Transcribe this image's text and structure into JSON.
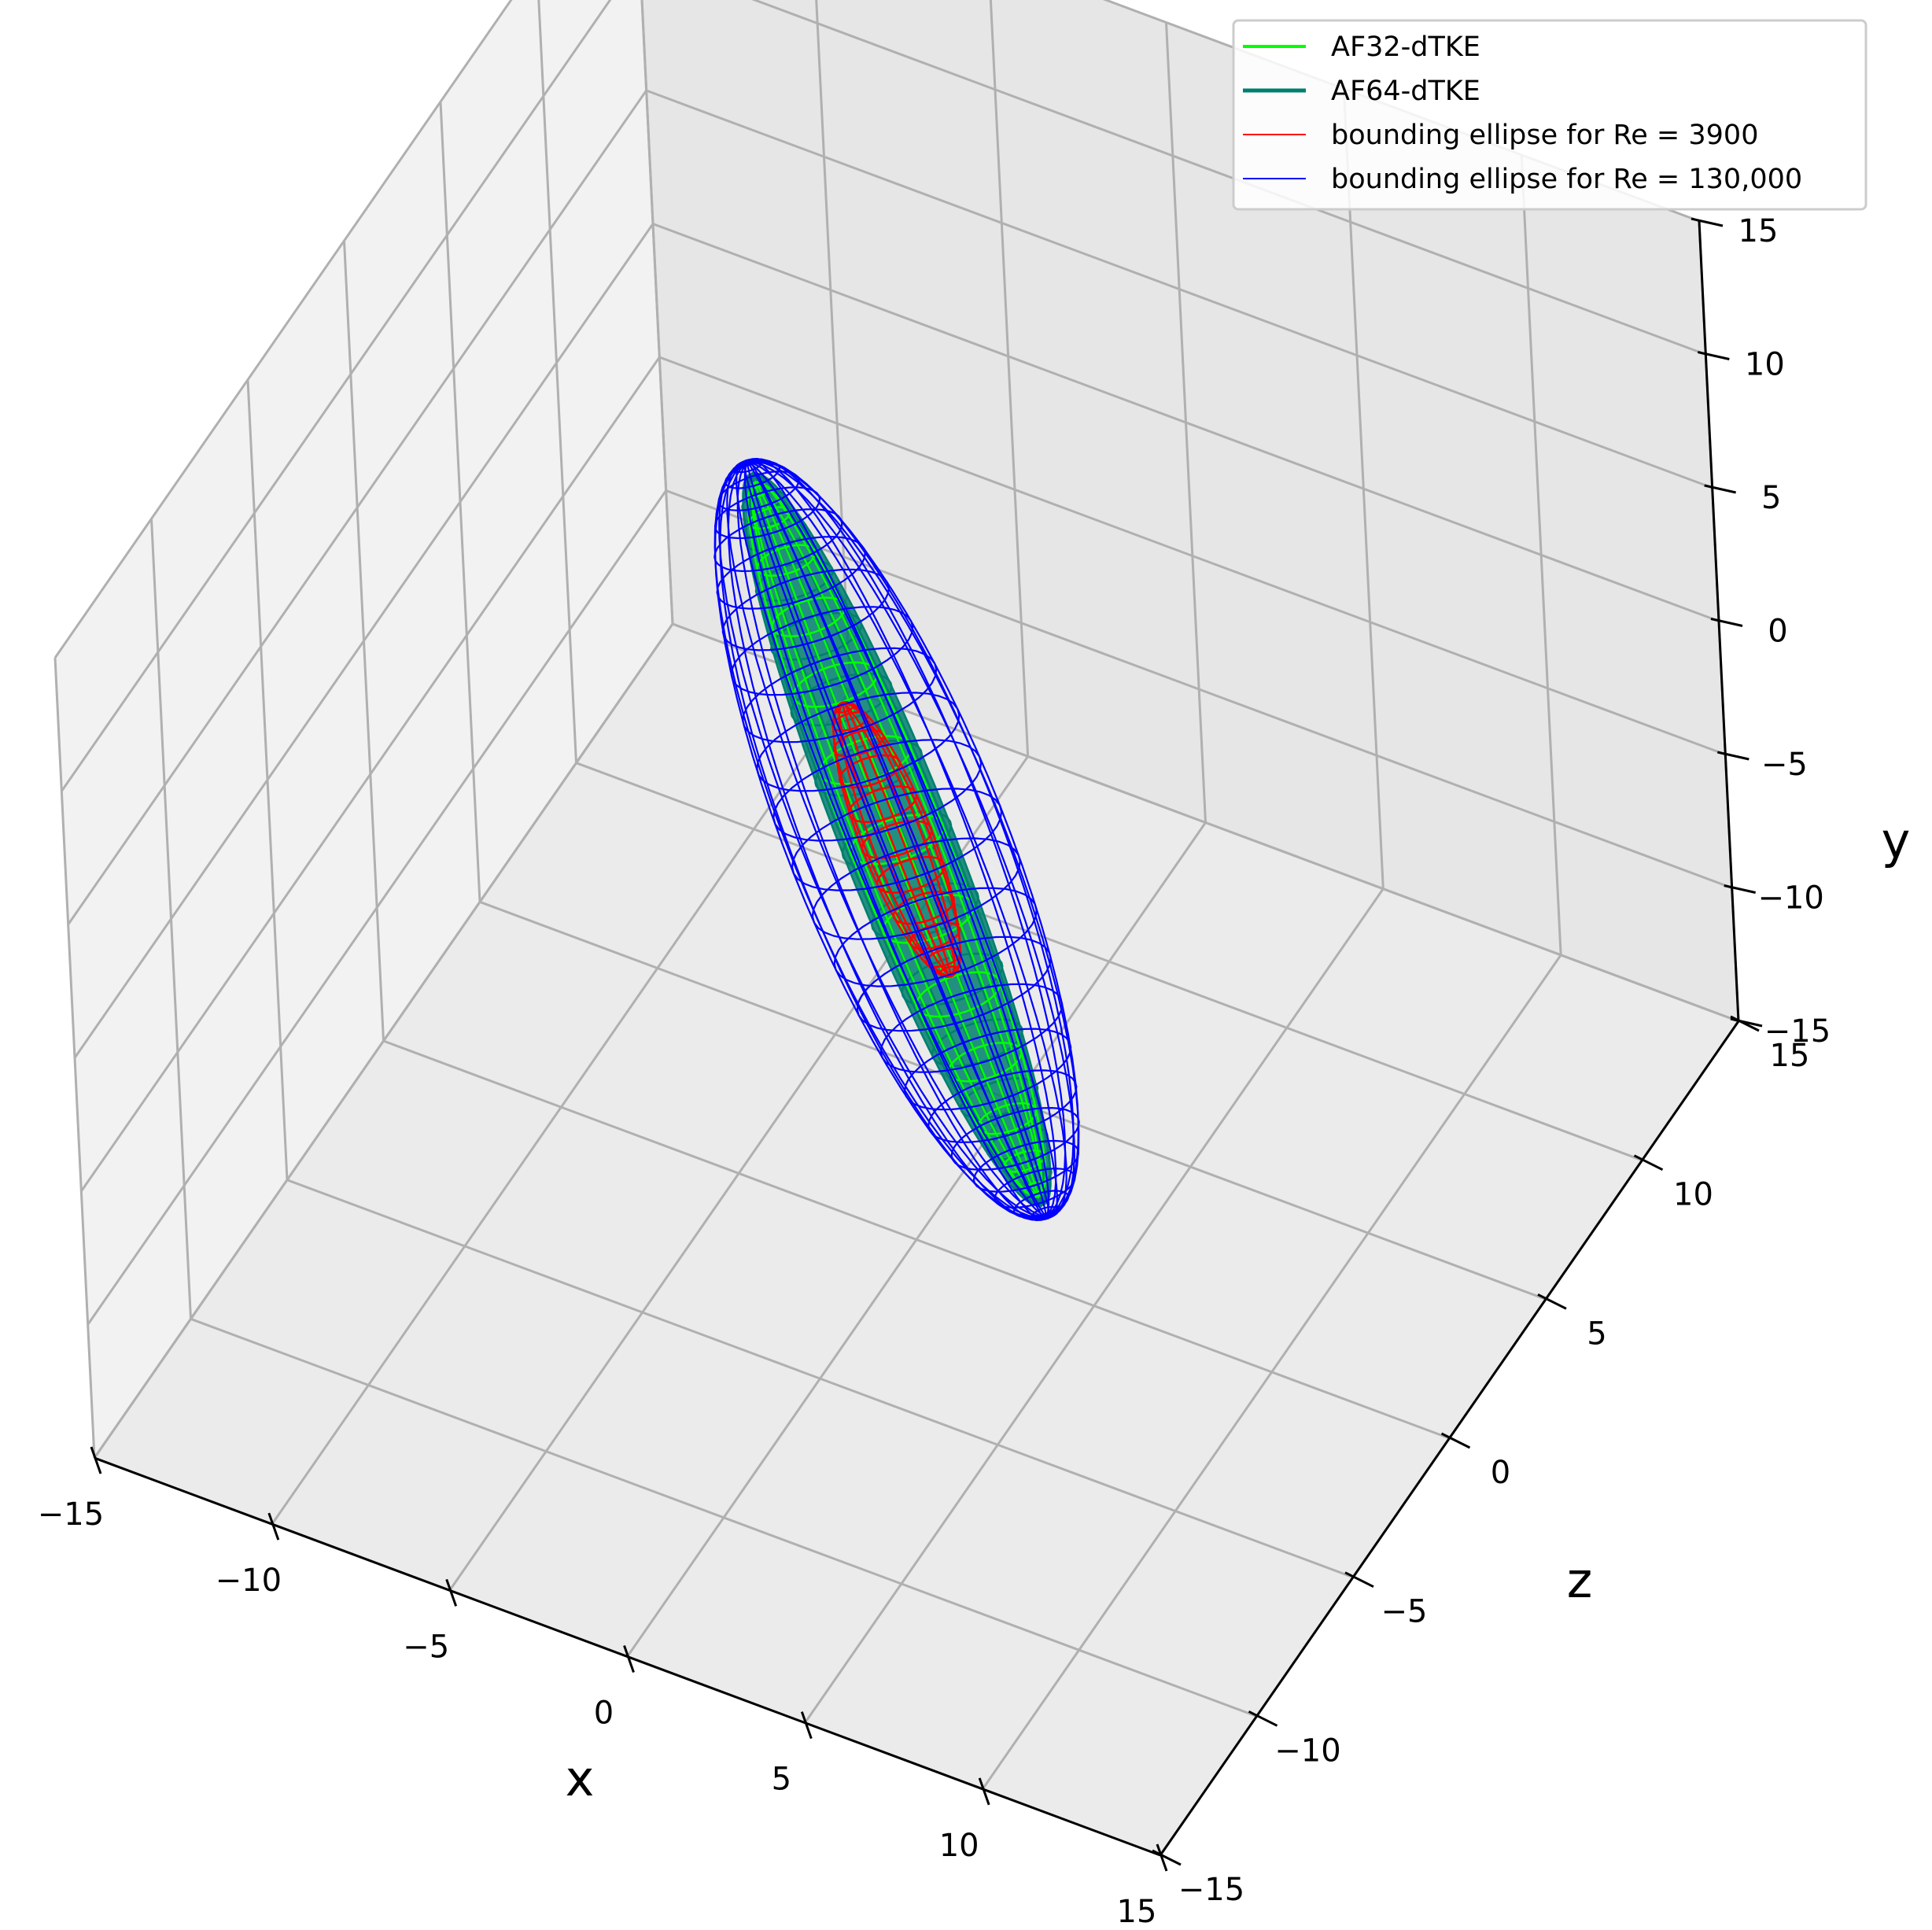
{
  "chart_data": {
    "type": "3d-wireframe",
    "xlabel": "x",
    "ylabel": "y",
    "zlabel": "z",
    "xlim": [
      -15,
      15
    ],
    "ylim": [
      -15,
      15
    ],
    "zlim": [
      -15,
      15
    ],
    "ticks": {
      "x": [
        "−15",
        "−10",
        "−5",
        "0",
        "5",
        "10",
        "15"
      ],
      "y": [
        "−15",
        "−10",
        "−5",
        "0",
        "5",
        "10",
        "15"
      ],
      "z": [
        "−15",
        "−10",
        "−5",
        "0",
        "5",
        "10",
        "15"
      ]
    },
    "grid": true,
    "legend_position": "top-right",
    "series": [
      {
        "name": "AF32-dTKE",
        "color": "#00ff00",
        "kind": "surface"
      },
      {
        "name": "AF64-dTKE",
        "color": "#007f6e",
        "kind": "surface"
      },
      {
        "name": "bounding ellipse for Re = 3900",
        "color": "#ff0000",
        "kind": "wireframe"
      },
      {
        "name": "bounding ellipse for Re = 130,000",
        "color": "#0000ff",
        "kind": "wireframe"
      }
    ]
  }
}
